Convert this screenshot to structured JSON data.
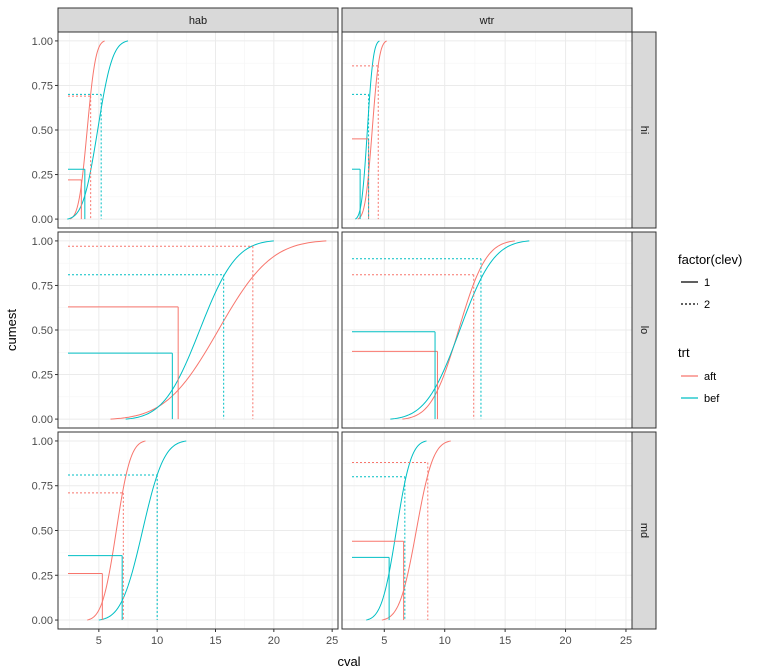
{
  "chart_data": {
    "type": "line",
    "xlabel": "cval",
    "ylabel": "cumest",
    "facet_cols": [
      "hab",
      "wtr"
    ],
    "facet_rows": [
      "hi",
      "lo",
      "md"
    ],
    "xlim": [
      1.5,
      25.5
    ],
    "x_ticks": [
      5,
      10,
      15,
      20,
      25
    ],
    "x_tick_labels": [
      "5",
      "10",
      "15",
      "20",
      "25"
    ],
    "ylim": [
      -0.05,
      1.05
    ],
    "y_ticks": [
      0,
      0.25,
      0.5,
      0.75,
      1.0
    ],
    "y_tick_labels": [
      "0.00",
      "0.25",
      "0.50",
      "0.75",
      "1.00"
    ],
    "colors": {
      "aft": "#F8766D",
      "bef": "#00BFC4"
    },
    "legend": {
      "position": "right",
      "clev_title": "factor(clev)",
      "clev_items": [
        {
          "label": "1",
          "dash": "solid"
        },
        {
          "label": "2",
          "dash": "dotted"
        }
      ],
      "trt_title": "trt",
      "trt_items": [
        {
          "label": "aft",
          "color": "#F8766D"
        },
        {
          "label": "bef",
          "color": "#00BFC4"
        }
      ]
    },
    "panels": [
      {
        "col": "hab",
        "row": "hi",
        "curves": [
          {
            "trt": "aft",
            "xmin": 2.5,
            "xmax": 5.5
          },
          {
            "trt": "bef",
            "xmin": 2.3,
            "xmax": 7.5
          }
        ],
        "refs": [
          {
            "trt": "aft",
            "clev": "1",
            "x": 3.5,
            "y": 0.22
          },
          {
            "trt": "aft",
            "clev": "2",
            "x": 4.3,
            "y": 0.69
          },
          {
            "trt": "bef",
            "clev": "1",
            "x": 3.8,
            "y": 0.28
          },
          {
            "trt": "bef",
            "clev": "2",
            "x": 5.2,
            "y": 0.7
          }
        ]
      },
      {
        "col": "wtr",
        "row": "hi",
        "curves": [
          {
            "trt": "aft",
            "xmin": 2.8,
            "xmax": 5.2
          },
          {
            "trt": "bef",
            "xmin": 2.6,
            "xmax": 4.6
          }
        ],
        "refs": [
          {
            "trt": "aft",
            "clev": "1",
            "x": 3.7,
            "y": 0.45
          },
          {
            "trt": "aft",
            "clev": "2",
            "x": 4.5,
            "y": 0.86
          },
          {
            "trt": "bef",
            "clev": "1",
            "x": 3.0,
            "y": 0.28
          },
          {
            "trt": "bef",
            "clev": "2",
            "x": 3.7,
            "y": 0.7
          }
        ]
      },
      {
        "col": "hab",
        "row": "lo",
        "curves": [
          {
            "trt": "aft",
            "xmin": 6.0,
            "xmax": 24.5
          },
          {
            "trt": "bef",
            "xmin": 7.3,
            "xmax": 20.0
          }
        ],
        "refs": [
          {
            "trt": "aft",
            "clev": "1",
            "x": 11.8,
            "y": 0.63
          },
          {
            "trt": "aft",
            "clev": "2",
            "x": 18.2,
            "y": 0.97
          },
          {
            "trt": "bef",
            "clev": "1",
            "x": 11.3,
            "y": 0.37
          },
          {
            "trt": "bef",
            "clev": "2",
            "x": 15.7,
            "y": 0.81
          }
        ]
      },
      {
        "col": "wtr",
        "row": "lo",
        "curves": [
          {
            "trt": "aft",
            "xmin": 6.5,
            "xmax": 15.8
          },
          {
            "trt": "bef",
            "xmin": 5.5,
            "xmax": 17.0
          }
        ],
        "refs": [
          {
            "trt": "aft",
            "clev": "1",
            "x": 9.4,
            "y": 0.38
          },
          {
            "trt": "aft",
            "clev": "2",
            "x": 12.4,
            "y": 0.81
          },
          {
            "trt": "bef",
            "clev": "1",
            "x": 9.2,
            "y": 0.49
          },
          {
            "trt": "bef",
            "clev": "2",
            "x": 13.0,
            "y": 0.9
          }
        ]
      },
      {
        "col": "hab",
        "row": "md",
        "curves": [
          {
            "trt": "aft",
            "xmin": 4.0,
            "xmax": 9.0
          },
          {
            "trt": "bef",
            "xmin": 5.0,
            "xmax": 12.5
          }
        ],
        "refs": [
          {
            "trt": "aft",
            "clev": "1",
            "x": 5.3,
            "y": 0.26
          },
          {
            "trt": "aft",
            "clev": "2",
            "x": 7.1,
            "y": 0.71
          },
          {
            "trt": "bef",
            "clev": "1",
            "x": 7.0,
            "y": 0.36
          },
          {
            "trt": "bef",
            "clev": "2",
            "x": 10.0,
            "y": 0.81
          }
        ]
      },
      {
        "col": "wtr",
        "row": "md",
        "curves": [
          {
            "trt": "aft",
            "xmin": 4.8,
            "xmax": 10.5
          },
          {
            "trt": "bef",
            "xmin": 3.5,
            "xmax": 8.5
          }
        ],
        "refs": [
          {
            "trt": "aft",
            "clev": "1",
            "x": 6.6,
            "y": 0.44
          },
          {
            "trt": "aft",
            "clev": "2",
            "x": 8.6,
            "y": 0.88
          },
          {
            "trt": "bef",
            "clev": "1",
            "x": 5.4,
            "y": 0.35
          },
          {
            "trt": "bef",
            "clev": "2",
            "x": 6.7,
            "y": 0.8
          }
        ]
      }
    ]
  }
}
